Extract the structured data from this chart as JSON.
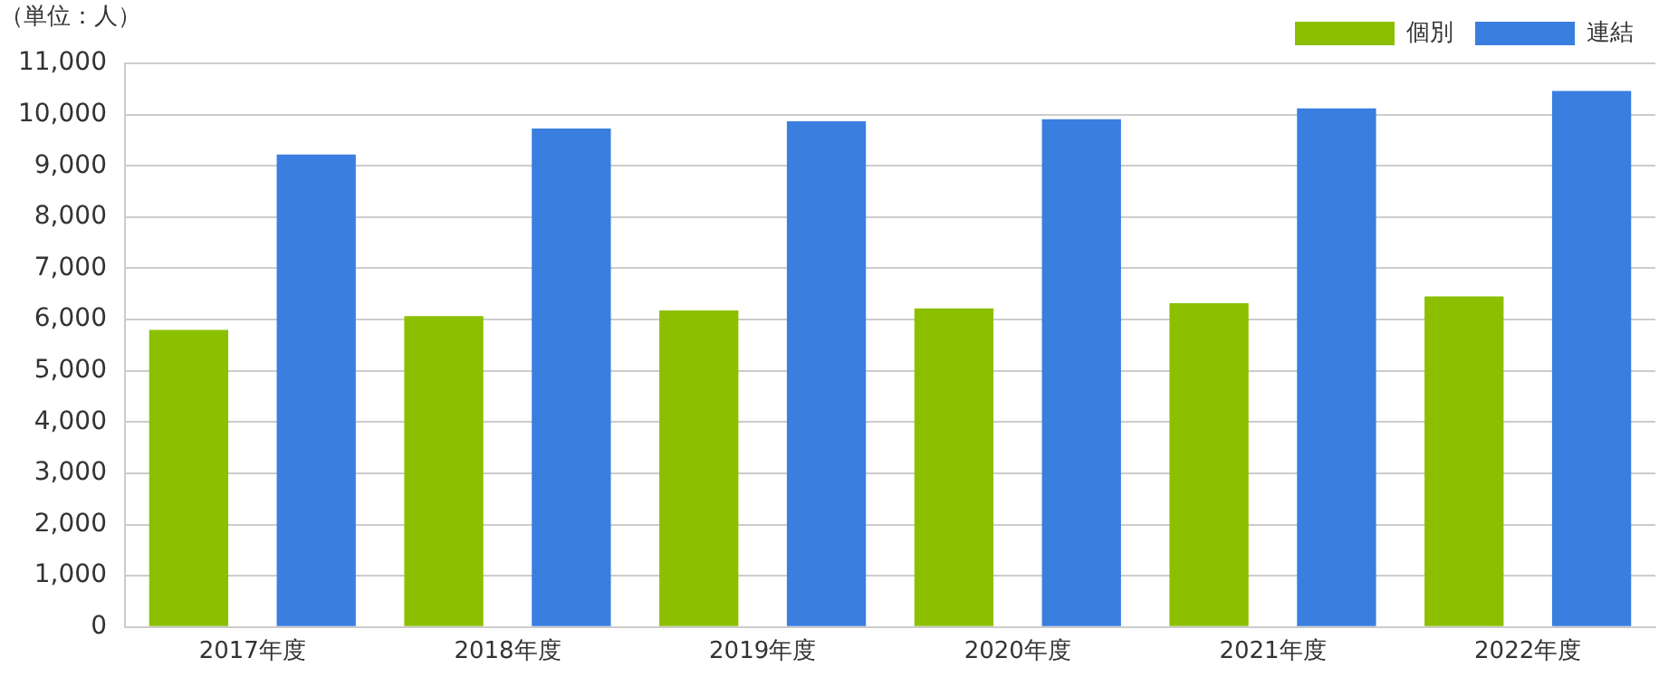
{
  "chart_data": {
    "type": "bar",
    "ylabel": "（単位：人）",
    "categories": [
      "2017年度",
      "2018年度",
      "2019年度",
      "2020年度",
      "2021年度",
      "2022年度"
    ],
    "series": [
      {
        "name": "個別",
        "color": "#8cbf00",
        "values": [
          5800,
          6070,
          6180,
          6220,
          6320,
          6450
        ]
      },
      {
        "name": "連結",
        "color": "#3a7ee0",
        "values": [
          9220,
          9730,
          9870,
          9910,
          10120,
          10460
        ]
      }
    ],
    "ylim": [
      0,
      11000
    ],
    "yticks": [
      0,
      {
        "value": 1000,
        "label": "1,000"
      },
      {
        "value": 2000,
        "label": "2,000"
      },
      {
        "value": 3000,
        "label": "3,000"
      },
      {
        "value": 4000,
        "label": "4,000"
      },
      {
        "value": 5000,
        "label": "5,000"
      },
      {
        "value": 6000,
        "label": "6,000"
      },
      {
        "value": 7000,
        "label": "7,000"
      },
      {
        "value": 8000,
        "label": "8,000"
      },
      {
        "value": 9000,
        "label": "9,000"
      },
      {
        "value": 10000,
        "label": "10,000"
      },
      {
        "value": 11000,
        "label": "11,000"
      }
    ],
    "grid": "y",
    "legend": "top right"
  }
}
